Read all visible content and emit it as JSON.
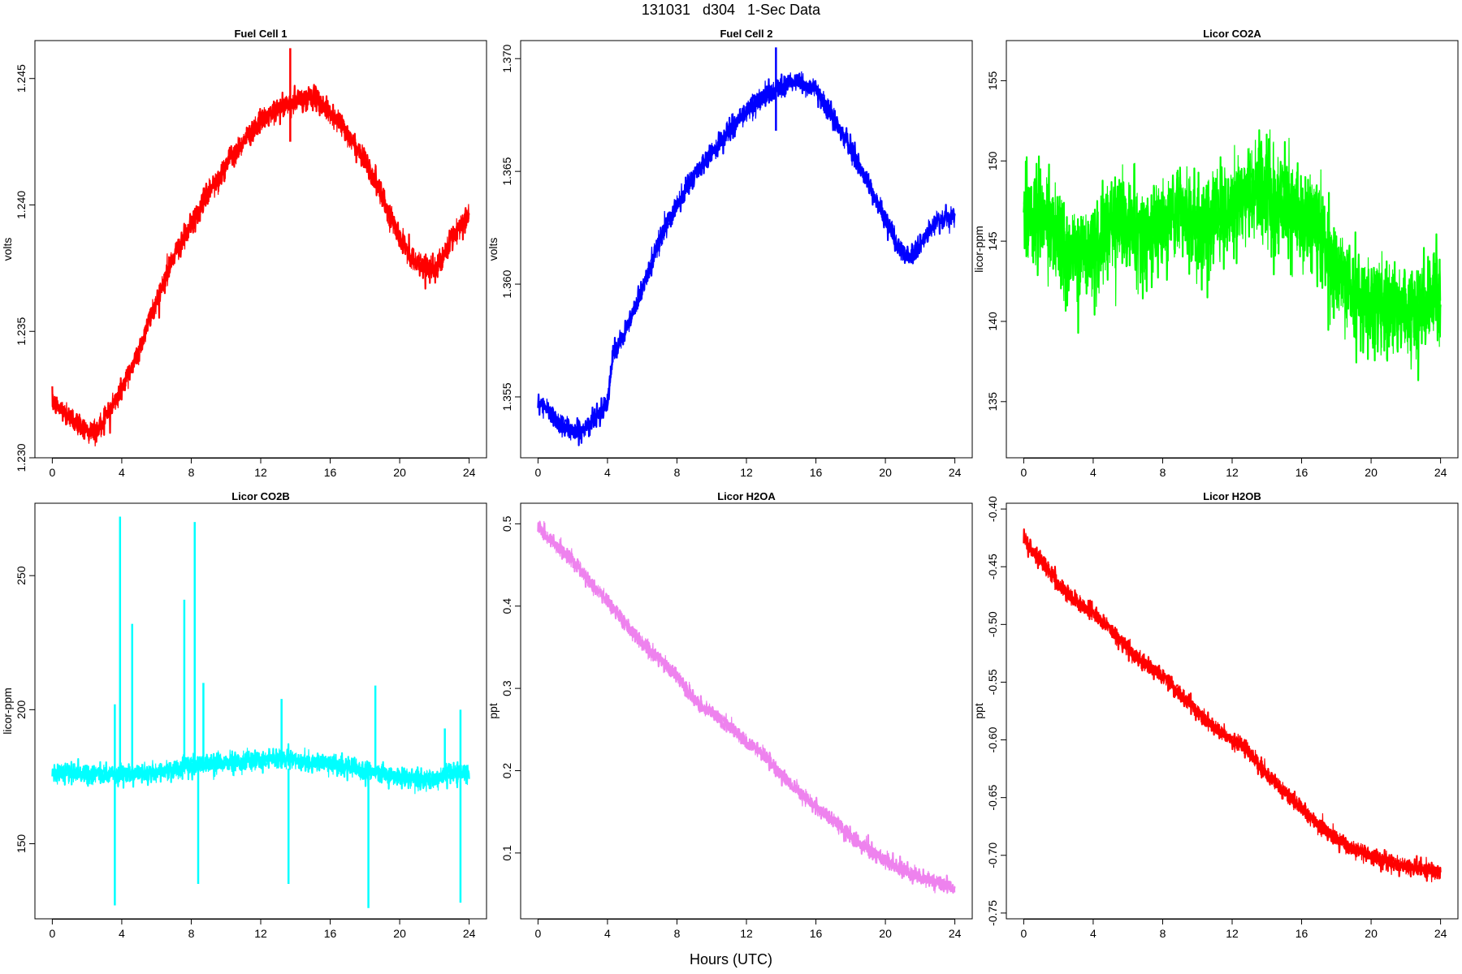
{
  "figure": {
    "title": "131031   d304   1-Sec Data",
    "xlabel": "Hours (UTC)"
  },
  "chart_data": [
    {
      "type": "line",
      "title": "Fuel Cell 1",
      "xlabel": "",
      "ylabel": "volts",
      "color": "#ff0000",
      "xlim": [
        -1,
        25
      ],
      "ylim": [
        1.23,
        1.2465
      ],
      "xticks": [
        0,
        4,
        8,
        12,
        16,
        20,
        24
      ],
      "yticks": [
        "1.230",
        "1.235",
        "1.240",
        "1.245"
      ],
      "noise": 0.00045,
      "spike": {
        "x": 13.7,
        "low": 1.2425,
        "high": 1.2462
      },
      "series": [
        {
          "x": [
            0,
            1,
            2,
            2.5,
            3,
            4,
            5,
            6,
            7,
            7.5,
            8,
            9,
            10,
            11,
            12,
            13,
            14,
            15,
            16,
            17,
            18,
            19,
            20,
            21,
            22,
            22.5,
            23,
            24
          ],
          "y": [
            1.2322,
            1.2316,
            1.2311,
            1.231,
            1.2315,
            1.2327,
            1.2343,
            1.2362,
            1.238,
            1.2386,
            1.2392,
            1.2405,
            1.2416,
            1.2425,
            1.2433,
            1.2438,
            1.2441,
            1.2443,
            1.2437,
            1.2428,
            1.2418,
            1.2403,
            1.2387,
            1.2377,
            1.2374,
            1.238,
            1.2386,
            1.2397
          ]
        }
      ]
    },
    {
      "type": "line",
      "title": "Fuel Cell 2",
      "xlabel": "",
      "ylabel": "volts",
      "color": "#0000ff",
      "xlim": [
        -1,
        25
      ],
      "ylim": [
        1.3523,
        1.3708
      ],
      "xticks": [
        0,
        4,
        8,
        12,
        16,
        20,
        24
      ],
      "yticks": [
        "1.355",
        "1.360",
        "1.365",
        "1.370"
      ],
      "noise": 0.00045,
      "spike": {
        "x": 13.7,
        "low": 1.3668,
        "high": 1.3705
      },
      "series": [
        {
          "x": [
            0,
            1,
            2,
            2.5,
            3,
            4,
            4.3,
            5,
            6,
            7,
            8,
            9,
            10,
            11,
            12,
            13,
            14,
            15,
            16,
            17,
            18,
            19,
            20,
            21,
            21.5,
            22,
            23,
            24
          ],
          "y": [
            1.3548,
            1.354,
            1.3535,
            1.3535,
            1.3538,
            1.3548,
            1.3568,
            1.3578,
            1.3598,
            1.362,
            1.3635,
            1.3648,
            1.3658,
            1.3668,
            1.3677,
            1.3683,
            1.3688,
            1.369,
            1.3686,
            1.3674,
            1.366,
            1.3645,
            1.3628,
            1.3614,
            1.3612,
            1.3618,
            1.3628,
            1.363
          ]
        }
      ]
    },
    {
      "type": "line",
      "title": "Licor CO2A",
      "xlabel": "",
      "ylabel": "licor-ppm",
      "color": "#00ff00",
      "xlim": [
        -1,
        25
      ],
      "ylim": [
        131.5,
        157.5
      ],
      "xticks": [
        0,
        4,
        8,
        12,
        16,
        20,
        24
      ],
      "yticks": [
        "135",
        "140",
        "145",
        "150",
        "155"
      ],
      "noise": 2.8,
      "series": [
        {
          "x": [
            0,
            1,
            2,
            3,
            4,
            5,
            6,
            7,
            8,
            9,
            10,
            11,
            12,
            13,
            14,
            15,
            16,
            17,
            18,
            19,
            20,
            21,
            22,
            23,
            24
          ],
          "y": [
            147,
            146.5,
            145,
            144,
            144.5,
            146,
            146,
            145,
            146,
            147,
            146,
            146.5,
            147,
            148,
            148,
            147,
            146.5,
            146,
            143,
            142,
            141,
            141,
            140.5,
            141,
            142
          ]
        }
      ]
    },
    {
      "type": "line",
      "title": "Licor CO2B",
      "xlabel": "",
      "ylabel": "licor-ppm",
      "color": "#00ffff",
      "xlim": [
        -1,
        25
      ],
      "ylim": [
        122,
        277
      ],
      "xticks": [
        0,
        4,
        8,
        12,
        16,
        20,
        24
      ],
      "yticks": [
        "150",
        "200",
        "250"
      ],
      "noise": 3.5,
      "spikes": [
        {
          "x": 3.6,
          "low": 127,
          "high": 202
        },
        {
          "x": 3.9,
          "low": 178,
          "high": 272
        },
        {
          "x": 4.6,
          "low": 178,
          "high": 232
        },
        {
          "x": 7.6,
          "low": 178,
          "high": 241
        },
        {
          "x": 8.2,
          "low": 178,
          "high": 270
        },
        {
          "x": 8.4,
          "low": 135,
          "high": 178
        },
        {
          "x": 8.7,
          "low": 178,
          "high": 210
        },
        {
          "x": 13.6,
          "low": 135,
          "high": 178
        },
        {
          "x": 13.2,
          "low": 178,
          "high": 204
        },
        {
          "x": 18.2,
          "low": 126,
          "high": 178
        },
        {
          "x": 18.6,
          "low": 178,
          "high": 209
        },
        {
          "x": 22.6,
          "low": 178,
          "high": 193
        },
        {
          "x": 23.5,
          "low": 128,
          "high": 200
        }
      ],
      "series": [
        {
          "x": [
            0,
            2,
            4,
            6,
            8,
            9,
            10,
            12,
            13,
            14,
            16,
            18,
            20,
            22,
            23,
            24
          ],
          "y": [
            177,
            176,
            176,
            177,
            179,
            180,
            180,
            181,
            182,
            181,
            180,
            177,
            175,
            174,
            177,
            176
          ]
        }
      ]
    },
    {
      "type": "line",
      "title": "Licor H2OA",
      "xlabel": "",
      "ylabel": "ppt",
      "color": "#ee82ee",
      "xlim": [
        -1,
        25
      ],
      "ylim": [
        0.02,
        0.525
      ],
      "xticks": [
        0,
        4,
        8,
        12,
        16,
        20,
        24
      ],
      "yticks": [
        "0.1",
        "0.2",
        "0.3",
        "0.4",
        "0.5"
      ],
      "noise": 0.009,
      "series": [
        {
          "x": [
            0,
            1,
            2,
            3,
            4,
            5,
            6,
            7,
            8,
            9,
            10,
            11,
            12,
            13,
            14,
            15,
            16,
            17,
            18,
            19,
            20,
            21,
            22,
            23,
            24
          ],
          "y": [
            0.495,
            0.475,
            0.455,
            0.43,
            0.405,
            0.38,
            0.355,
            0.335,
            0.315,
            0.285,
            0.27,
            0.255,
            0.235,
            0.22,
            0.195,
            0.175,
            0.155,
            0.14,
            0.12,
            0.105,
            0.09,
            0.08,
            0.07,
            0.065,
            0.055
          ]
        }
      ]
    },
    {
      "type": "line",
      "title": "Licor H2OB",
      "xlabel": "",
      "ylabel": "ppt",
      "color": "#ff0000",
      "xlim": [
        -1,
        25
      ],
      "ylim": [
        -0.755,
        -0.395
      ],
      "xticks": [
        0,
        4,
        8,
        12,
        16,
        20,
        24
      ],
      "yticks": [
        "-0.75",
        "-0.70",
        "-0.65",
        "-0.60",
        "-0.55",
        "-0.50",
        "-0.45",
        "-0.40"
      ],
      "noise": 0.007,
      "series": [
        {
          "x": [
            0,
            1,
            2,
            3,
            4,
            5,
            6,
            7,
            8,
            9,
            10,
            11,
            12,
            13,
            14,
            15,
            16,
            17,
            18,
            19,
            20,
            21,
            22,
            23,
            24
          ],
          "y": [
            -0.425,
            -0.445,
            -0.465,
            -0.48,
            -0.49,
            -0.505,
            -0.52,
            -0.535,
            -0.545,
            -0.56,
            -0.575,
            -0.59,
            -0.6,
            -0.61,
            -0.63,
            -0.645,
            -0.66,
            -0.675,
            -0.685,
            -0.695,
            -0.7,
            -0.705,
            -0.71,
            -0.712,
            -0.715
          ]
        }
      ]
    }
  ]
}
